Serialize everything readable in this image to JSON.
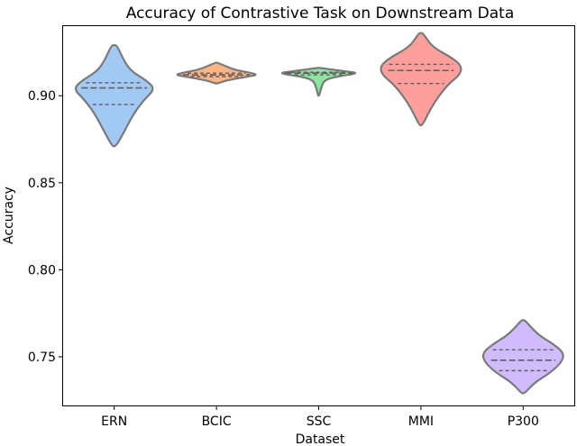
{
  "chart_data": {
    "type": "violin",
    "title": "Accuracy of Contrastive Task on Downstream Data",
    "xlabel": "Dataset",
    "ylabel": "Accuracy",
    "ylim": [
      0.722,
      0.94
    ],
    "yticks": [
      "0.75",
      "0.80",
      "0.85",
      "0.90"
    ],
    "grid": false,
    "categories": [
      "ERN",
      "BCIC",
      "SSC",
      "MMI",
      "P300"
    ],
    "colors": [
      "#a1c9f4",
      "#ffb482",
      "#8de5a1",
      "#ff9f9b",
      "#d0bbff"
    ],
    "series": [
      {
        "category": "ERN",
        "min": 0.871,
        "q1": 0.895,
        "median": 0.9045,
        "q3": 0.9075,
        "max": 0.929,
        "density": [
          [
            0.871,
            0.3
          ],
          [
            0.88,
            1.6
          ],
          [
            0.89,
            3.0
          ],
          [
            0.898,
            4.6
          ],
          [
            0.904,
            6.2
          ],
          [
            0.909,
            4.8
          ],
          [
            0.914,
            2.6
          ],
          [
            0.92,
            1.5
          ],
          [
            0.929,
            0.4
          ]
        ]
      },
      {
        "category": "BCIC",
        "min": 0.907,
        "q1": 0.911,
        "median": 0.912,
        "q3": 0.913,
        "max": 0.919,
        "density": [
          [
            0.907,
            0.3
          ],
          [
            0.909,
            6.0
          ],
          [
            0.911,
            17.0
          ],
          [
            0.912,
            22.0
          ],
          [
            0.913,
            19.0
          ],
          [
            0.915,
            9.5
          ],
          [
            0.917,
            5.0
          ],
          [
            0.919,
            0.4
          ]
        ]
      },
      {
        "category": "SSC",
        "min": 0.9,
        "q1": 0.912,
        "median": 0.913,
        "q3": 0.9135,
        "max": 0.916,
        "density": [
          [
            0.9,
            0.3
          ],
          [
            0.904,
            1.2
          ],
          [
            0.909,
            3.0
          ],
          [
            0.911,
            10.0
          ],
          [
            0.913,
            23.0
          ],
          [
            0.914,
            15.0
          ],
          [
            0.915,
            8.0
          ],
          [
            0.916,
            0.5
          ]
        ]
      },
      {
        "category": "MMI",
        "min": 0.883,
        "q1": 0.907,
        "median": 0.9145,
        "q3": 0.918,
        "max": 0.936,
        "density": [
          [
            0.883,
            0.3
          ],
          [
            0.892,
            1.8
          ],
          [
            0.9,
            3.5
          ],
          [
            0.907,
            5.5
          ],
          [
            0.912,
            7.6
          ],
          [
            0.917,
            8.0
          ],
          [
            0.922,
            6.0
          ],
          [
            0.928,
            2.2
          ],
          [
            0.936,
            0.4
          ]
        ]
      },
      {
        "category": "P300",
        "min": 0.729,
        "q1": 0.742,
        "median": 0.748,
        "q3": 0.754,
        "max": 0.771,
        "density": [
          [
            0.729,
            0.3
          ],
          [
            0.735,
            2.0
          ],
          [
            0.741,
            5.0
          ],
          [
            0.747,
            7.0
          ],
          [
            0.752,
            7.4
          ],
          [
            0.757,
            5.6
          ],
          [
            0.762,
            3.0
          ],
          [
            0.767,
            1.4
          ],
          [
            0.771,
            0.3
          ]
        ]
      }
    ]
  }
}
